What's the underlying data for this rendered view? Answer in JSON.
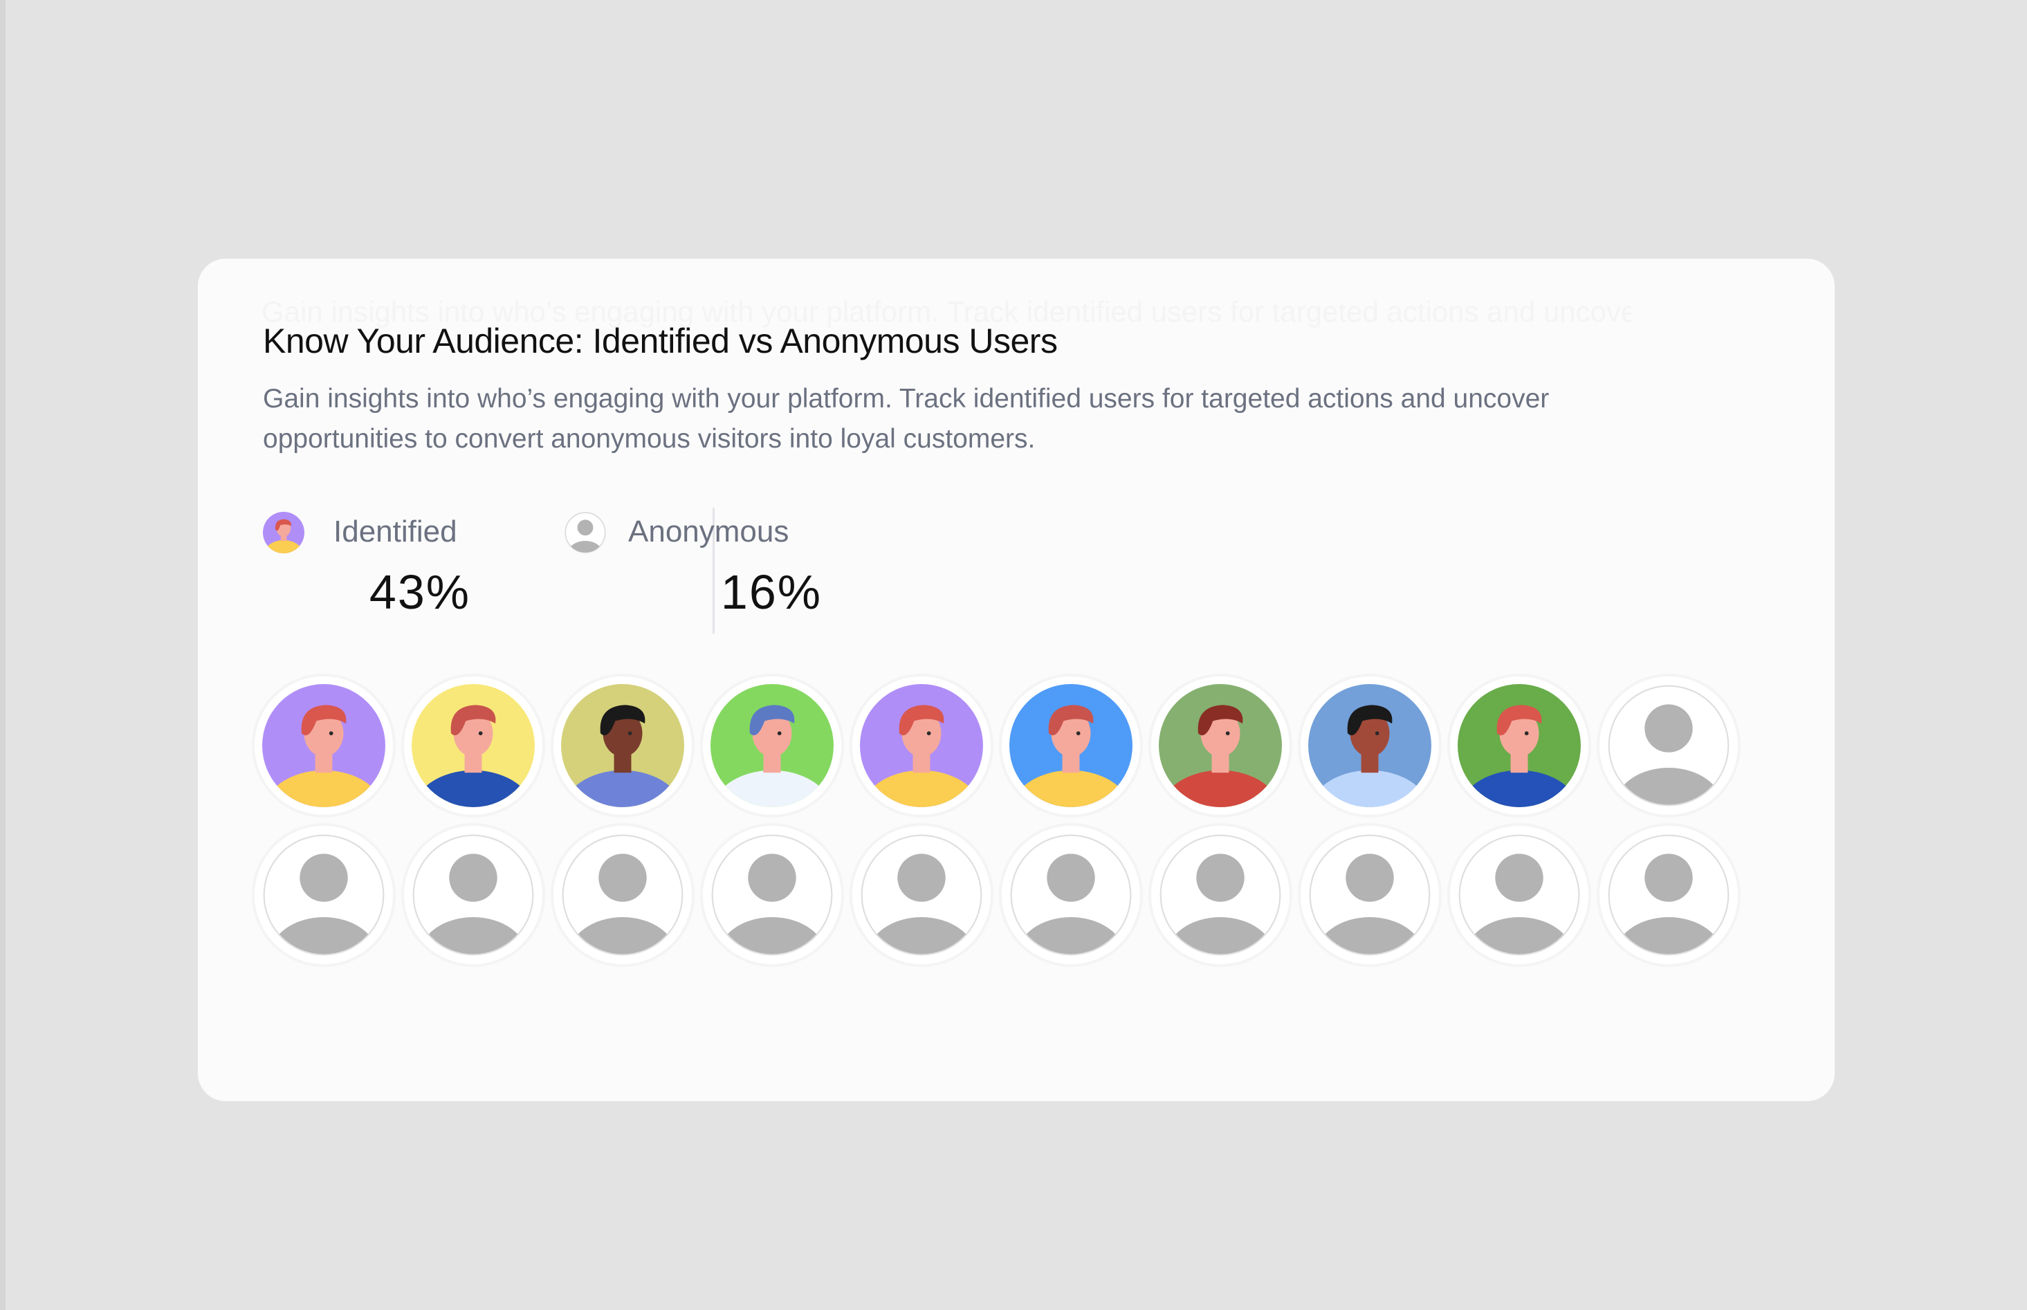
{
  "card": {
    "title": "Know Your Audience: Identified vs Anonymous Users",
    "subtitle": "Gain insights into who’s engaging with your platform. Track identified users for targeted actions and uncover opportunities to convert anonymous visitors into loyal customers."
  },
  "legend": {
    "identified": {
      "label": "Identified",
      "value": "43%",
      "icon": "identified-user-icon"
    },
    "anonymous": {
      "label": "Anonymous",
      "value": "16%",
      "icon": "anonymous-user-icon"
    }
  },
  "avatars": {
    "rows": [
      [
        {
          "type": "identified",
          "bg": "#b08ef8",
          "shirt": "#fbcd50",
          "hair": "#d9574d",
          "skin": "#f5a99c"
        },
        {
          "type": "identified",
          "bg": "#f8e879",
          "shirt": "#2652b4",
          "hair": "#c9544d",
          "skin": "#f5a99c"
        },
        {
          "type": "identified",
          "bg": "#d4d17a",
          "shirt": "#6e83d8",
          "hair": "#1a1a1a",
          "skin": "#7a3c2c"
        },
        {
          "type": "identified",
          "bg": "#84d860",
          "shirt": "#eef4fb",
          "hair": "#5c7ac4",
          "skin": "#f5a99c"
        },
        {
          "type": "identified",
          "bg": "#b08ef8",
          "shirt": "#fbcd50",
          "hair": "#d9574d",
          "skin": "#f5a99c"
        },
        {
          "type": "identified",
          "bg": "#4f9bf8",
          "shirt": "#fbcd50",
          "hair": "#c9544d",
          "skin": "#f5a99c"
        },
        {
          "type": "identified",
          "bg": "#86b070",
          "shirt": "#d2493f",
          "hair": "#8a2d25",
          "skin": "#f5a99c"
        },
        {
          "type": "identified",
          "bg": "#73a0d8",
          "shirt": "#bcd6fb",
          "hair": "#1a1a1a",
          "skin": "#a24a3a"
        },
        {
          "type": "identified",
          "bg": "#69ac4a",
          "shirt": "#2452b8",
          "hair": "#d9574d",
          "skin": "#f5a99c"
        },
        {
          "type": "anonymous"
        }
      ],
      [
        {
          "type": "anonymous"
        },
        {
          "type": "anonymous"
        },
        {
          "type": "anonymous"
        },
        {
          "type": "anonymous"
        },
        {
          "type": "anonymous"
        },
        {
          "type": "anonymous"
        },
        {
          "type": "anonymous"
        },
        {
          "type": "anonymous"
        },
        {
          "type": "anonymous"
        },
        {
          "type": "anonymous"
        }
      ]
    ]
  },
  "colors": {
    "page_background": "#e3e3e3",
    "card_background": "#fbfbfb",
    "title": "#111111",
    "muted_text": "#6b7180",
    "placeholder_silhouette": "#b3b3b3"
  }
}
